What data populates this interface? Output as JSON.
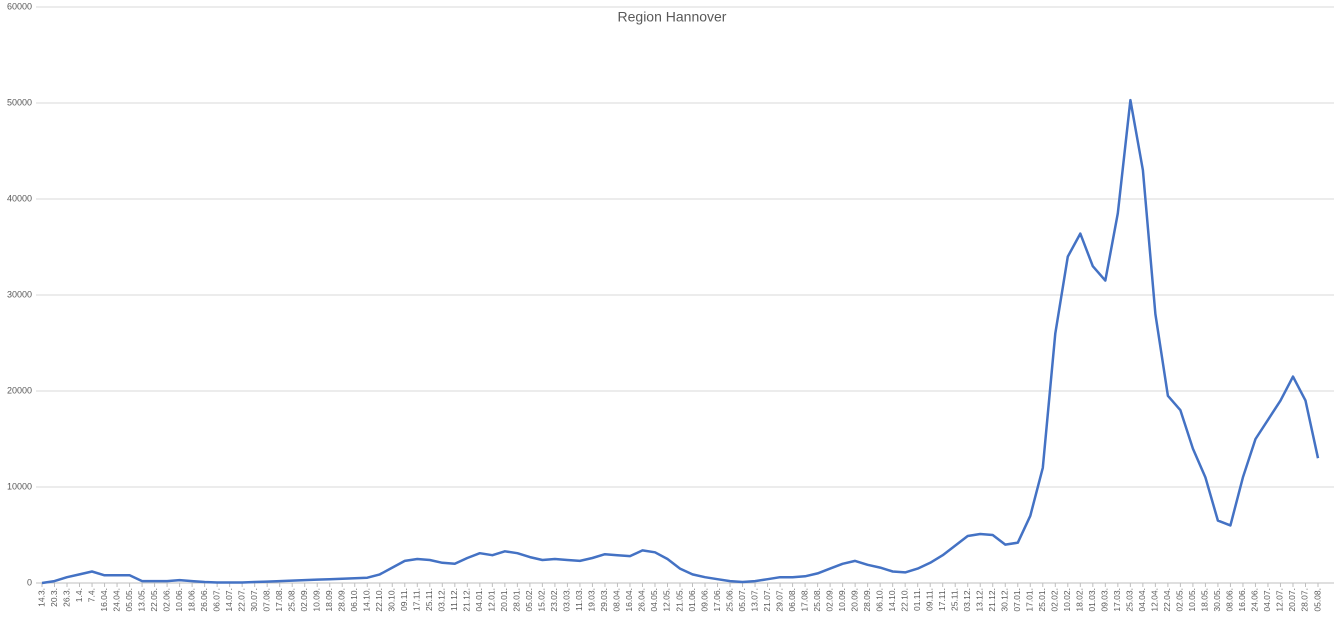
{
  "chart_data": {
    "type": "line",
    "title": "Region Hannover",
    "categories": [
      "14.3.",
      "20.3.",
      "26.3.",
      "1.4.",
      "7.4.",
      "16.04.",
      "24.04.",
      "05.05.",
      "13.05.",
      "22.05.",
      "02.06.",
      "10.06.",
      "18.06.",
      "26.06.",
      "06.07.",
      "14.07.",
      "22.07.",
      "30.07.",
      "07.08.",
      "17.08.",
      "25.08.",
      "02.09.",
      "10.09.",
      "18.09.",
      "28.09.",
      "06.10.",
      "14.10.",
      "22.10.",
      "30.10.",
      "09.11.",
      "17.11.",
      "25.11.",
      "03.12.",
      "11.12.",
      "21.12.",
      "04.01.",
      "12.01.",
      "20.01.",
      "28.01.",
      "05.02.",
      "15.02.",
      "23.02.",
      "03.03.",
      "11.03.",
      "19.03.",
      "29.03.",
      "08.04.",
      "16.04.",
      "26.04.",
      "04.05.",
      "12.05.",
      "21.05.",
      "01.06.",
      "09.06.",
      "17.06.",
      "25.06.",
      "05.07.",
      "13.07.",
      "21.07.",
      "29.07.",
      "06.08.",
      "17.08.",
      "25.08.",
      "02.09.",
      "10.09.",
      "20.09.",
      "28.09.",
      "06.10.",
      "14.10.",
      "22.10.",
      "01.11.",
      "09.11.",
      "17.11.",
      "25.11.",
      "03.12.",
      "13.12.",
      "21.12.",
      "30.12.",
      "07.01.",
      "17.01.",
      "25.01.",
      "02.02.",
      "10.02.",
      "18.02.",
      "01.03.",
      "09.03.",
      "17.03.",
      "25.03.",
      "04.04.",
      "12.04.",
      "22.04.",
      "02.05.",
      "10.05.",
      "18.05.",
      "30.05.",
      "08.06.",
      "16.06.",
      "24.06.",
      "04.07.",
      "12.07.",
      "20.07.",
      "28.07.",
      "05.08."
    ],
    "series": [
      {
        "name": "Region Hannover",
        "color": "#4472c4",
        "values": [
          0,
          200,
          600,
          900,
          1200,
          800,
          800,
          800,
          200,
          200,
          200,
          300,
          200,
          100,
          50,
          50,
          50,
          100,
          150,
          200,
          250,
          300,
          350,
          400,
          450,
          500,
          550,
          900,
          1600,
          2300,
          2500,
          2400,
          2100,
          2000,
          2600,
          3100,
          2900,
          3300,
          3100,
          2700,
          2400,
          2500,
          2400,
          2300,
          2600,
          3000,
          2900,
          2800,
          3400,
          3200,
          2500,
          1500,
          900,
          600,
          400,
          200,
          100,
          200,
          400,
          600,
          600,
          700,
          1000,
          1500,
          2000,
          2300,
          1900,
          1600,
          1200,
          1100,
          1500,
          2100,
          2900,
          3900,
          4900,
          5100,
          5000,
          4000,
          4200,
          7000,
          12000,
          26000,
          34000,
          36400,
          33000,
          31500,
          38500,
          50300,
          43000,
          28000,
          19500,
          18000,
          14000,
          11000,
          6500,
          6000,
          11000,
          15000,
          17000,
          19000,
          21500,
          19000,
          13000
        ]
      }
    ],
    "ylim": [
      0,
      60000
    ],
    "yticks": [
      0,
      10000,
      20000,
      30000,
      40000,
      50000,
      60000
    ],
    "grid": true
  }
}
